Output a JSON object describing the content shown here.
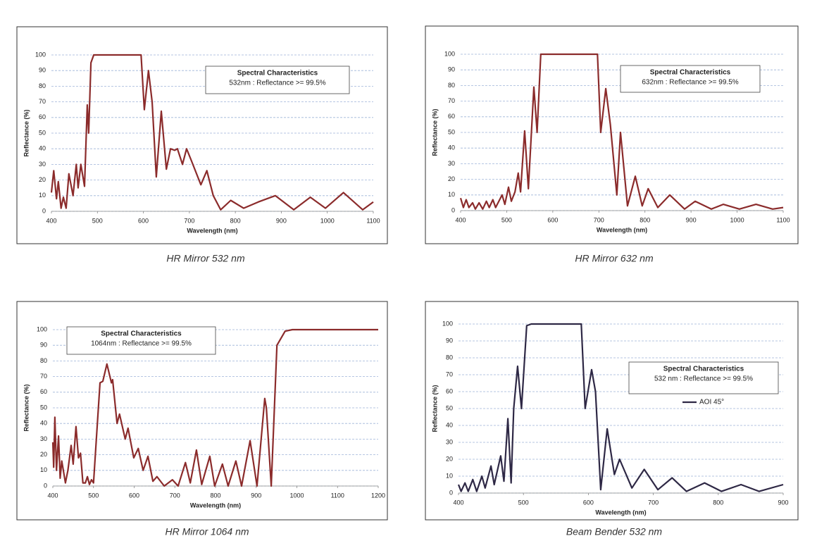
{
  "chart_data": [
    {
      "type": "line",
      "title": "HR Mirror 532 nm",
      "xlabel": "Wavelength (nm)",
      "ylabel": "Reflectance (%)",
      "annotations": [
        "Spectral Characteristics",
        "532nm : Reflectance >= 99.5%"
      ],
      "xlim": [
        400,
        1100
      ],
      "xticks": [
        400,
        500,
        600,
        700,
        800,
        900,
        1000,
        1100
      ],
      "ylim": [
        0,
        100
      ],
      "yticks": [
        0,
        10,
        20,
        30,
        40,
        50,
        60,
        70,
        80,
        90,
        100
      ],
      "grid": true,
      "x": [
        400,
        405,
        411,
        415,
        421,
        426,
        432,
        438,
        447,
        454,
        458,
        464,
        472,
        478,
        481,
        486,
        492,
        500,
        595,
        602,
        611,
        619,
        628,
        639,
        650,
        659,
        668,
        674,
        685,
        694,
        705,
        725,
        738,
        752,
        768,
        790,
        818,
        850,
        887,
        927,
        963,
        996,
        1035,
        1077,
        1100
      ],
      "series": [
        {
          "color": "#8b2b2b",
          "values": [
            12,
            26,
            8,
            19,
            2,
            9,
            2,
            24,
            10,
            30,
            15,
            30,
            16,
            68,
            50,
            95,
            100,
            100,
            100,
            65,
            90,
            70,
            22,
            64,
            27,
            40,
            39,
            40,
            30,
            40,
            32,
            17,
            26,
            10,
            1,
            7,
            2,
            6,
            10,
            1,
            9,
            2,
            12,
            1,
            6
          ]
        }
      ]
    },
    {
      "type": "line",
      "title": "HR Mirror 632 nm",
      "xlabel": "Wavelength (nm)",
      "ylabel": "Reflectance (%)",
      "annotations": [
        "Spectral Characteristics",
        "632nm : Reflectance >= 99.5%"
      ],
      "xlim": [
        400,
        1100
      ],
      "xticks": [
        400,
        500,
        600,
        700,
        800,
        900,
        1000,
        1100
      ],
      "ylim": [
        0,
        100
      ],
      "yticks": [
        0,
        10,
        20,
        30,
        40,
        50,
        60,
        70,
        80,
        90,
        100
      ],
      "grid": true,
      "x": [
        400,
        406,
        412,
        418,
        426,
        432,
        440,
        448,
        456,
        462,
        470,
        476,
        490,
        496,
        504,
        510,
        518,
        525,
        530,
        539,
        547,
        559,
        566,
        574,
        580,
        697,
        704,
        715,
        725,
        739,
        747,
        762,
        779,
        794,
        807,
        828,
        854,
        886,
        909,
        944,
        970,
        1005,
        1041,
        1077,
        1100
      ],
      "series": [
        {
          "color": "#8b2b2b",
          "values": [
            8,
            2,
            7,
            2,
            5,
            1,
            5,
            1,
            6,
            2,
            7,
            2,
            10,
            4,
            15,
            6,
            12,
            24,
            12,
            51,
            14,
            79,
            50,
            100,
            100,
            100,
            50,
            78,
            55,
            10,
            50,
            3,
            22,
            3,
            14,
            2,
            10,
            1,
            6,
            1,
            4,
            1,
            4,
            1,
            2
          ]
        }
      ]
    },
    {
      "type": "line",
      "title": "HR Mirror 1064 nm",
      "xlabel": "Wavelength (nm)",
      "ylabel": "Reflectance (%)",
      "annotations": [
        "Spectral Characteristics",
        "1064nm : Reflectance >= 99.5%"
      ],
      "xlim": [
        400,
        1200
      ],
      "xticks": [
        400,
        500,
        600,
        700,
        800,
        900,
        1000,
        1100,
        1200
      ],
      "ylim": [
        0,
        100
      ],
      "yticks": [
        0,
        10,
        20,
        30,
        40,
        50,
        60,
        70,
        80,
        90,
        100
      ],
      "grid": true,
      "x": [
        400,
        402,
        405,
        409,
        414,
        418,
        422,
        431,
        437,
        445,
        450,
        457,
        463,
        468,
        474,
        480,
        485,
        490,
        495,
        500,
        507,
        516,
        523,
        533,
        544,
        547,
        558,
        564,
        578,
        585,
        599,
        610,
        622,
        634,
        646,
        656,
        674,
        694,
        708,
        726,
        738,
        753,
        766,
        786,
        798,
        817,
        831,
        850,
        864,
        885,
        902,
        921,
        925,
        937,
        951,
        971,
        989,
        1200
      ],
      "series": [
        {
          "color": "#8b2b2b",
          "values": [
            28,
            12,
            44,
            10,
            32,
            5,
            16,
            2,
            10,
            26,
            14,
            38,
            18,
            21,
            2,
            2,
            6,
            1,
            4,
            2,
            30,
            66,
            67,
            78,
            66,
            68,
            40,
            46,
            30,
            37,
            18,
            24,
            10,
            19,
            3,
            6,
            0,
            4,
            0,
            15,
            2,
            23,
            1,
            19,
            0,
            14,
            0,
            16,
            0,
            29,
            0,
            56,
            50,
            0,
            90,
            99,
            100,
            100
          ]
        }
      ]
    },
    {
      "type": "line",
      "title": "Beam Bender 532 nm",
      "xlabel": "Wavelength (nm)",
      "ylabel": "Reflectance (%)",
      "annotations": [
        "Spectral Characteristics",
        "532 nm : Reflectance >= 99.5%"
      ],
      "xlim": [
        400,
        900
      ],
      "xticks": [
        400,
        500,
        600,
        700,
        800,
        900
      ],
      "ylim": [
        0,
        100
      ],
      "yticks": [
        0,
        10,
        20,
        30,
        40,
        50,
        60,
        70,
        80,
        90,
        100
      ],
      "grid": true,
      "x": [
        400,
        404,
        410,
        415,
        422,
        428,
        436,
        441,
        450,
        455,
        465,
        470,
        476,
        481,
        485,
        491,
        497,
        505,
        512,
        589,
        595,
        605,
        611,
        619,
        629,
        640,
        648,
        667,
        686,
        707,
        729,
        751,
        779,
        805,
        835,
        863,
        900
      ],
      "series": [
        {
          "name": "AOI 45°",
          "color": "#2e2845",
          "values": [
            5,
            1,
            6,
            1,
            8,
            1,
            10,
            3,
            16,
            5,
            22,
            7,
            44,
            6,
            50,
            75,
            50,
            99,
            100,
            100,
            50,
            73,
            60,
            2,
            38,
            11,
            20,
            3,
            14,
            2,
            9,
            1,
            6,
            1,
            5,
            1,
            5
          ]
        }
      ]
    }
  ]
}
